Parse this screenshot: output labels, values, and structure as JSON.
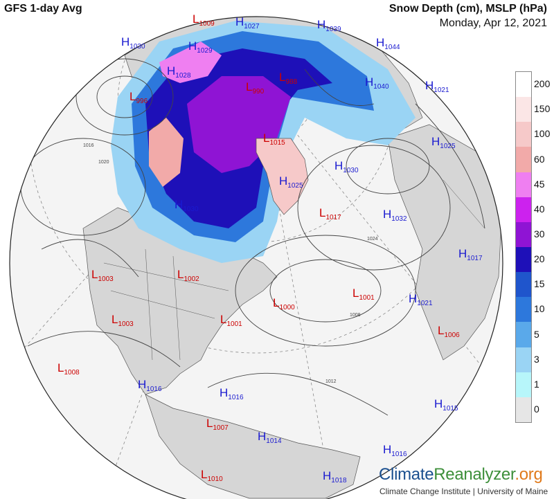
{
  "header": {
    "left_title": "GFS 1-day Avg",
    "right_title": "Snow Depth (cm), MSLP (hPa)",
    "date": "Monday, Apr 12, 2021"
  },
  "legend": {
    "items": [
      {
        "label": "200",
        "color": "#ffffff"
      },
      {
        "label": "150",
        "color": "#fbe6e6"
      },
      {
        "label": "100",
        "color": "#f6c9c9"
      },
      {
        "label": "60",
        "color": "#f2aaa9"
      },
      {
        "label": "45",
        "color": "#ef7ff1"
      },
      {
        "label": "40",
        "color": "#cc22ee"
      },
      {
        "label": "30",
        "color": "#8f14d4"
      },
      {
        "label": "20",
        "color": "#1e10b8"
      },
      {
        "label": "15",
        "color": "#1f55cc"
      },
      {
        "label": "10",
        "color": "#2d78dc"
      },
      {
        "label": "5",
        "color": "#5aa9ea"
      },
      {
        "label": "3",
        "color": "#9ad4f4"
      },
      {
        "label": "1",
        "color": "#b7f6fa"
      },
      {
        "label": "0",
        "color": "#e6e6e6"
      }
    ]
  },
  "pressure_centers": [
    {
      "kind": "L",
      "value": "1009"
    },
    {
      "kind": "H",
      "value": "1027"
    },
    {
      "kind": "H",
      "value": "1039"
    },
    {
      "kind": "H",
      "value": "1030"
    },
    {
      "kind": "H",
      "value": "1029"
    },
    {
      "kind": "H",
      "value": "1044"
    },
    {
      "kind": "H",
      "value": "1028"
    },
    {
      "kind": "L",
      "value": "990"
    },
    {
      "kind": "L",
      "value": "988"
    },
    {
      "kind": "H",
      "value": "1040"
    },
    {
      "kind": "H",
      "value": "1021"
    },
    {
      "kind": "L",
      "value": "996"
    },
    {
      "kind": "L",
      "value": "1015"
    },
    {
      "kind": "H",
      "value": "1025"
    },
    {
      "kind": "H",
      "value": "1030"
    },
    {
      "kind": "H",
      "value": "1025"
    },
    {
      "kind": "L",
      "value": "1017"
    },
    {
      "kind": "H",
      "value": "1032"
    },
    {
      "kind": "H",
      "value": "1030"
    },
    {
      "kind": "H",
      "value": "1017"
    },
    {
      "kind": "L",
      "value": "1003"
    },
    {
      "kind": "L",
      "value": "1002"
    },
    {
      "kind": "L",
      "value": "1001"
    },
    {
      "kind": "L",
      "value": "1000"
    },
    {
      "kind": "H",
      "value": "1021"
    },
    {
      "kind": "L",
      "value": "1003"
    },
    {
      "kind": "L",
      "value": "1001"
    },
    {
      "kind": "L",
      "value": "1006"
    },
    {
      "kind": "L",
      "value": "1008"
    },
    {
      "kind": "H",
      "value": "1016"
    },
    {
      "kind": "H",
      "value": "1016"
    },
    {
      "kind": "H",
      "value": "1015"
    },
    {
      "kind": "L",
      "value": "1007"
    },
    {
      "kind": "H",
      "value": "1014"
    },
    {
      "kind": "H",
      "value": "1016"
    },
    {
      "kind": "L",
      "value": "1010"
    },
    {
      "kind": "H",
      "value": "1018"
    }
  ],
  "isobar_labels": [
    "1016",
    "1020",
    "1024",
    "1008",
    "1012"
  ],
  "colors": {
    "low": "#cc0000",
    "high": "#1a1ad0",
    "ocean": "#f4f4f4",
    "land": "#d6d6d6"
  },
  "branding": {
    "name_part1": "Climate",
    "name_part2": "Reanalyzer",
    "name_part3": ".org",
    "credit": "Climate Change Institute | University of Maine"
  }
}
